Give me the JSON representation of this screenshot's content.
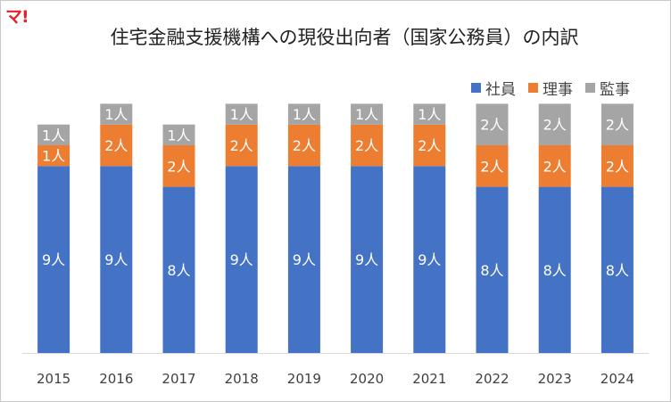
{
  "logo": {
    "text": "マ!"
  },
  "chart_data": {
    "type": "bar",
    "stacked": true,
    "title": "住宅金融支援機構への現役出向者（国家公務員）の内訳",
    "categories": [
      "2015",
      "2016",
      "2017",
      "2018",
      "2019",
      "2020",
      "2021",
      "2022",
      "2023",
      "2024"
    ],
    "series": [
      {
        "name": "社員",
        "color": "#4472c4",
        "values": [
          9,
          9,
          8,
          9,
          9,
          9,
          9,
          8,
          8,
          8
        ]
      },
      {
        "name": "理事",
        "color": "#ed7d31",
        "values": [
          1,
          2,
          2,
          2,
          2,
          2,
          2,
          2,
          2,
          2
        ]
      },
      {
        "name": "監事",
        "color": "#a5a5a5",
        "values": [
          1,
          1,
          1,
          1,
          1,
          1,
          1,
          2,
          2,
          2
        ]
      }
    ],
    "data_label_suffix": "人",
    "ylim": [
      0,
      14
    ],
    "grid": false,
    "legend_position": "top-right"
  }
}
